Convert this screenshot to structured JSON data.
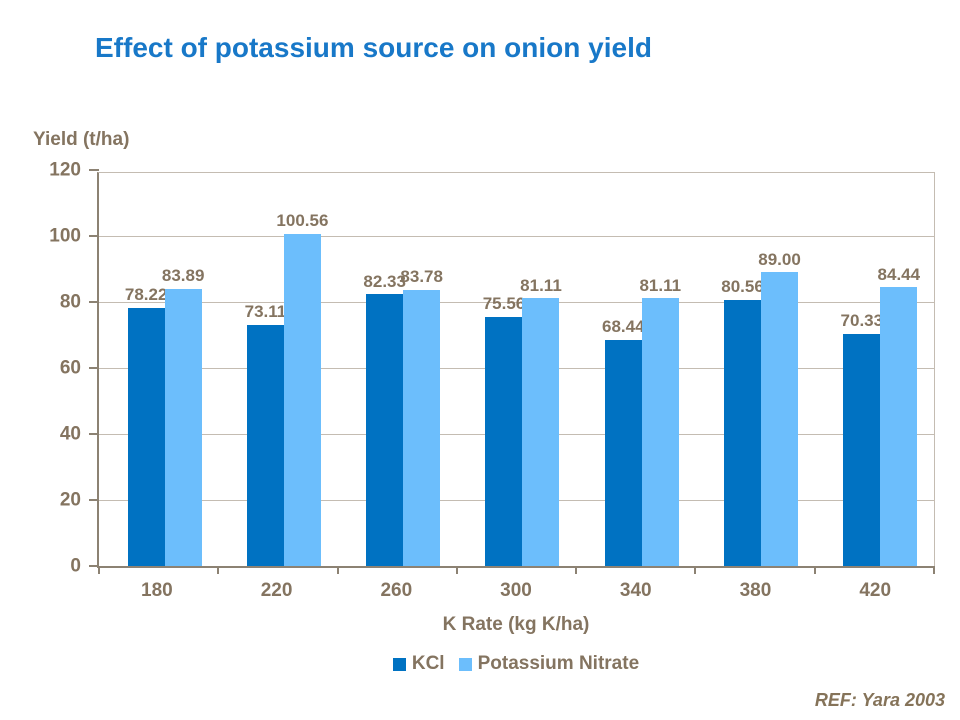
{
  "slide": {
    "title": "Effect of potassium source on onion yield",
    "reference": "REF: Yara 2003"
  },
  "colors": {
    "title_blue": "#1878C8",
    "label_text": "#847460",
    "axis_line": "#8C8273",
    "gridline": "#C4BCB2",
    "kcl_bar": "#0072C2",
    "potassium_nitrate_bar": "#6CBEFC",
    "reference_text": "#857359",
    "background": "#FFFFFF"
  },
  "chart_data": {
    "type": "bar",
    "title": "Effect of potassium source on onion yield",
    "categories": [
      "180",
      "220",
      "260",
      "300",
      "340",
      "380",
      "420"
    ],
    "series": [
      {
        "name": "KCl",
        "color": "#0072C2",
        "values": [
          78.22,
          73.11,
          82.33,
          75.56,
          68.44,
          80.56,
          70.33
        ]
      },
      {
        "name": "Potassium Nitrate",
        "color": "#6CBEFC",
        "values": [
          83.89,
          100.56,
          83.78,
          81.11,
          81.11,
          89.0,
          84.44
        ]
      }
    ],
    "xlabel": "K Rate (kg K/ha)",
    "ylabel": "Yield (t/ha)",
    "ylim": [
      0,
      120
    ],
    "yticks": [
      0,
      20,
      40,
      60,
      80,
      100,
      120
    ],
    "grid": true,
    "legend_position": "bottom",
    "data_labels": true,
    "data_label_decimals": 2
  }
}
